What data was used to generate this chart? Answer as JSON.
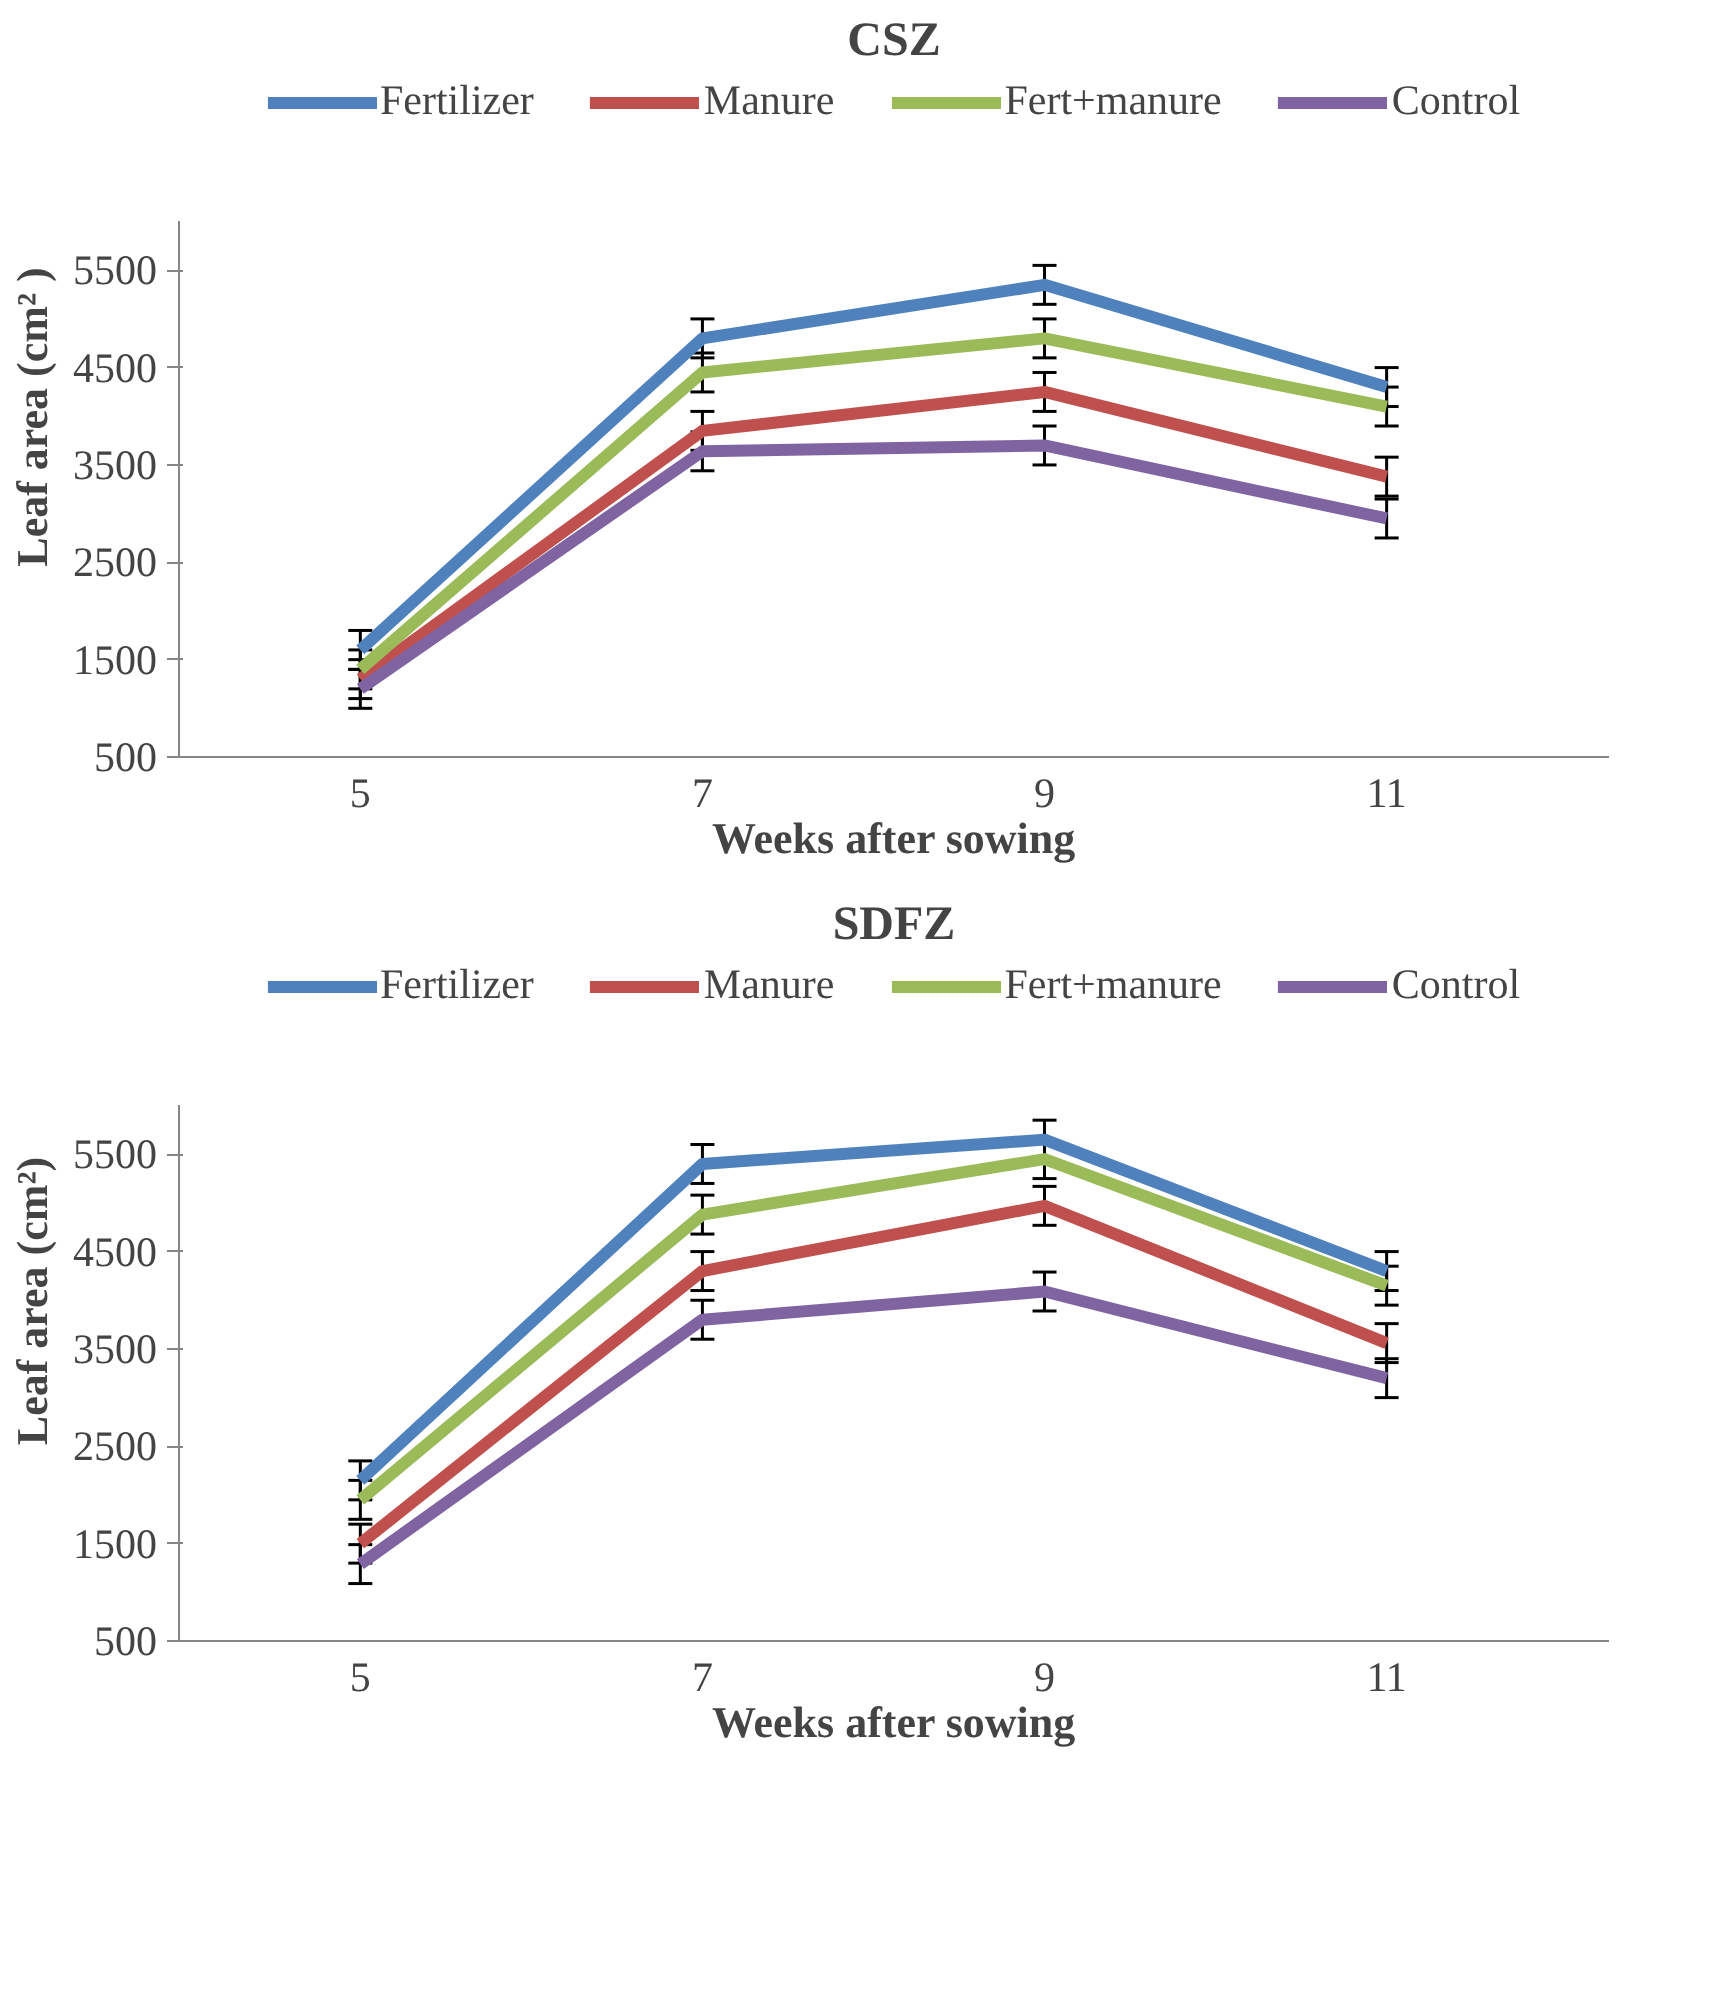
{
  "chart_data": [
    {
      "type": "line",
      "title": "CSZ",
      "xlabel": "Weeks after sowing",
      "ylabel": "Leaf area (cm² )",
      "categories": [
        "5",
        "7",
        "9",
        "11"
      ],
      "ylim": [
        500,
        6000
      ],
      "yticks": [
        500,
        1500,
        2500,
        3500,
        4500,
        5500
      ],
      "grid": false,
      "legend": "top",
      "marker": "none",
      "line_style": "solid",
      "series": [
        {
          "name": "Fertilizer",
          "color": "#4f81bd",
          "values": [
            1600,
            4800,
            5350,
            4300
          ],
          "errors": [
            200,
            200,
            200,
            200
          ]
        },
        {
          "name": "Manure",
          "color": "#c0504d",
          "values": [
            1300,
            3850,
            4250,
            3380
          ],
          "errors": [
            200,
            200,
            200,
            200
          ]
        },
        {
          "name": "Fert+manure",
          "color": "#9bbb59",
          "values": [
            1400,
            4450,
            4800,
            4100
          ],
          "errors": [
            200,
            200,
            200,
            200
          ]
        },
        {
          "name": "Control",
          "color": "#8064a2",
          "values": [
            1200,
            3640,
            3700,
            2950
          ],
          "errors": [
            200,
            200,
            200,
            200
          ]
        }
      ]
    },
    {
      "type": "line",
      "title": "SDFZ",
      "xlabel": "Weeks after sowing",
      "ylabel": "Leaf area (cm²)",
      "categories": [
        "5",
        "7",
        "9",
        "11"
      ],
      "ylim": [
        500,
        6000
      ],
      "yticks": [
        500,
        1500,
        2500,
        3500,
        4500,
        5500
      ],
      "grid": false,
      "legend": "top",
      "marker": "none",
      "line_style": "solid",
      "series": [
        {
          "name": "Fertilizer",
          "color": "#4f81bd",
          "values": [
            2150,
            5400,
            5650,
            4300
          ],
          "errors": [
            200,
            200,
            200,
            200
          ]
        },
        {
          "name": "Manure",
          "color": "#c0504d",
          "values": [
            1500,
            4300,
            4970,
            3560
          ],
          "errors": [
            200,
            200,
            200,
            200
          ]
        },
        {
          "name": "Fert+manure",
          "color": "#9bbb59",
          "values": [
            1950,
            4880,
            5450,
            4150
          ],
          "errors": [
            200,
            200,
            200,
            200
          ]
        },
        {
          "name": "Control",
          "color": "#8064a2",
          "values": [
            1290,
            3800,
            4090,
            3200
          ],
          "errors": [
            200,
            200,
            200,
            200
          ]
        }
      ]
    }
  ]
}
